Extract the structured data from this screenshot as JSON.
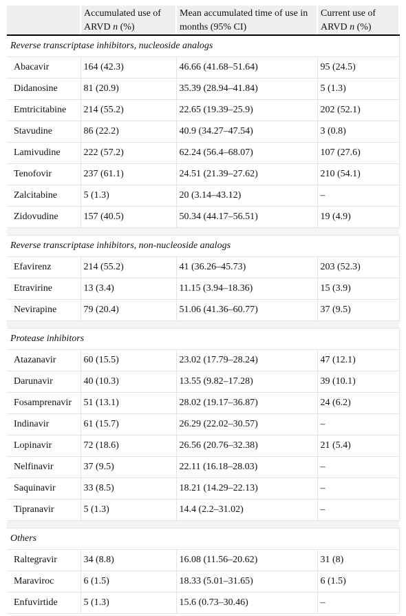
{
  "header": {
    "columns": [
      {
        "pre": "Accumulated use of ARVD ",
        "em": "n",
        "post": " (%)"
      },
      {
        "pre": "Mean accumulated time of use in months (95% CI)"
      },
      {
        "pre": "Current use of ARVD ",
        "em": "n",
        "post": " (%)"
      }
    ]
  },
  "sections": [
    {
      "title": "Reverse transcriptase inhibitors, nucleoside analogs",
      "rows": [
        [
          "Abacavir",
          "164 (42.3)",
          "46.66 (41.68–51.64)",
          "95 (24.5)"
        ],
        [
          "Didanosine",
          "81 (20.9)",
          "35.39 (28.94–41.84)",
          "5 (1.3)"
        ],
        [
          "Emtricitabine",
          "214 (55.2)",
          "22.65 (19.39–25.9)",
          "202 (52.1)"
        ],
        [
          "Stavudine",
          "86 (22.2)",
          "40.9 (34.27–47.54)",
          "3 (0.8)"
        ],
        [
          "Lamivudine",
          "222 (57.2)",
          "62.24 (56.4–68.07)",
          "107 (27.6)"
        ],
        [
          "Tenofovir",
          "237 (61.1)",
          "24.51 (21.39–27.62)",
          "210 (54.1)"
        ],
        [
          "Zalcitabine",
          "5 (1.3)",
          "20 (3.14–43.12)",
          "–"
        ],
        [
          "Zidovudine",
          "157 (40.5)",
          "50.34 (44.17–56.51)",
          "19 (4.9)"
        ]
      ]
    },
    {
      "title": "Reverse transcriptase inhibitors, non-nucleoside analogs",
      "rows": [
        [
          "Efavirenz",
          "214 (55.2)",
          "41 (36.26–45.73)",
          "203 (52.3)"
        ],
        [
          "Etravirine",
          "13 (3.4)",
          "11.15 (3.94–18.36)",
          "15 (3.9)"
        ],
        [
          "Nevirapine",
          "79 (20.4)",
          "51.06 (41.36–60.77)",
          "37 (9.5)"
        ]
      ]
    },
    {
      "title": "Protease inhibitors",
      "rows": [
        [
          "Atazanavir",
          "60 (15.5)",
          "23.02 (17.79–28.24)",
          "47 (12.1)"
        ],
        [
          "Darunavir",
          "40 (10.3)",
          "13.55 (9.82–17.28)",
          "39 (10.1)"
        ],
        [
          "Fosamprenavir",
          "51 (13.1)",
          "28.02 (19.17–36.87)",
          "24 (6.2)"
        ],
        [
          "Indinavir",
          "61 (15.7)",
          "26.29 (22.02–30.57)",
          "–"
        ],
        [
          "Lopinavir",
          "72 (18.6)",
          "26.56 (20.76–32.38)",
          "21 (5.4)"
        ],
        [
          "Nelfinavir",
          "37 (9.5)",
          "22.11 (16.18–28.03)",
          "–"
        ],
        [
          "Saquinavir",
          "33 (8.5)",
          "18.21 (14.29–22.13)",
          "–"
        ],
        [
          "Tipranavir",
          "5 (1.3)",
          "14.4 (2.2–31.02)",
          "–"
        ]
      ]
    },
    {
      "title": "Others",
      "rows": [
        [
          "Raltegravir",
          "34 (8.8)",
          "16.08 (11.56–20.62)",
          "31 (8)"
        ],
        [
          "Maraviroc",
          "6 (1.5)",
          "18.33 (5.01–31.65)",
          "6 (1.5)"
        ],
        [
          "Enfuvirtide",
          "5 (1.3)",
          "15.6 (0.73–30.46)",
          "–"
        ]
      ]
    }
  ]
}
